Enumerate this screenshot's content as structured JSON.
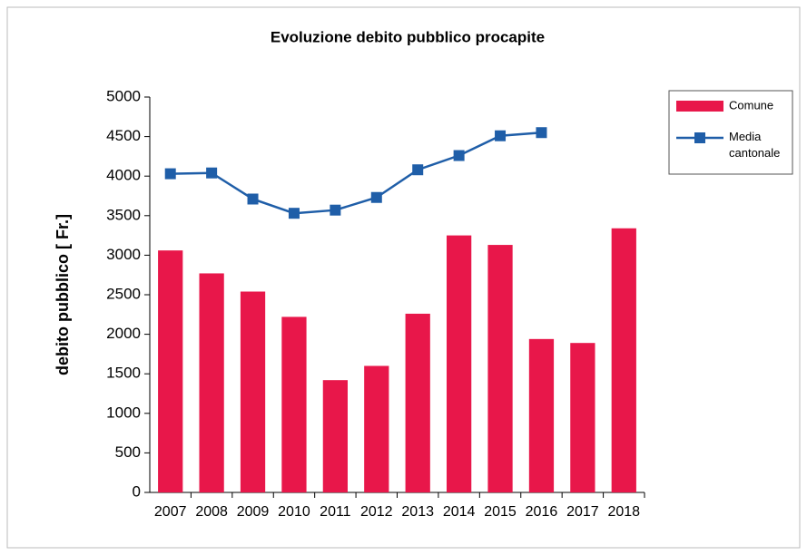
{
  "chart_data": {
    "type": "bar",
    "title": "Evoluzione debito pubblico procapite",
    "y_label": "debito pubblico [ Fr.]",
    "categories": [
      "2007",
      "2008",
      "2009",
      "2010",
      "2011",
      "2012",
      "2013",
      "2014",
      "2015",
      "2016",
      "2017",
      "2018"
    ],
    "series": [
      {
        "name": "Comune",
        "type": "bar",
        "color": "#e8174a",
        "values": [
          3060,
          2770,
          2540,
          2220,
          1420,
          1600,
          2260,
          3250,
          3130,
          1940,
          1890,
          3340
        ]
      },
      {
        "name": "Media cantonale",
        "type": "line",
        "color": "#1f5ea8",
        "values": [
          4030,
          4040,
          3710,
          3530,
          3570,
          3730,
          4080,
          4260,
          4510,
          4550,
          null,
          null
        ]
      }
    ],
    "ylim": [
      0,
      5000
    ],
    "yticks": [
      0,
      500,
      1000,
      1500,
      2000,
      2500,
      3000,
      3500,
      4000,
      4500,
      5000
    ],
    "legend": "right"
  }
}
